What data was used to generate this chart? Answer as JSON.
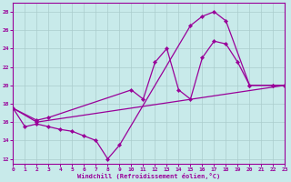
{
  "xlabel": "Windchill (Refroidissement éolien,°C)",
  "bg_color": "#c8eaea",
  "grid_color": "#aacccc",
  "line_color": "#990099",
  "xlim": [
    0,
    23
  ],
  "ylim": [
    11.5,
    29
  ],
  "xticks": [
    0,
    1,
    2,
    3,
    4,
    5,
    6,
    7,
    8,
    9,
    10,
    11,
    12,
    13,
    14,
    15,
    16,
    17,
    18,
    19,
    20,
    21,
    22,
    23
  ],
  "yticks": [
    12,
    14,
    16,
    18,
    20,
    22,
    24,
    26,
    28
  ],
  "series": [
    {
      "x": [
        0,
        1,
        2,
        3,
        4,
        5,
        6,
        7,
        8,
        9,
        15,
        16,
        17,
        18,
        20,
        22,
        23
      ],
      "y": [
        17.5,
        15.5,
        15.8,
        15.5,
        15.2,
        15.0,
        14.5,
        14.0,
        12.0,
        13.5,
        26.5,
        27.5,
        28.0,
        27.0,
        20.0,
        20.0,
        20.0
      ]
    },
    {
      "x": [
        0,
        2,
        3,
        10,
        11,
        12,
        13,
        14,
        15,
        16,
        17,
        18,
        19,
        20,
        22,
        23
      ],
      "y": [
        17.5,
        16.2,
        16.5,
        19.5,
        18.5,
        22.5,
        24.0,
        19.5,
        18.5,
        23.0,
        24.8,
        24.5,
        22.5,
        20.0,
        20.0,
        20.0
      ]
    },
    {
      "x": [
        0,
        2,
        23
      ],
      "y": [
        17.5,
        16.0,
        20.0
      ]
    }
  ]
}
